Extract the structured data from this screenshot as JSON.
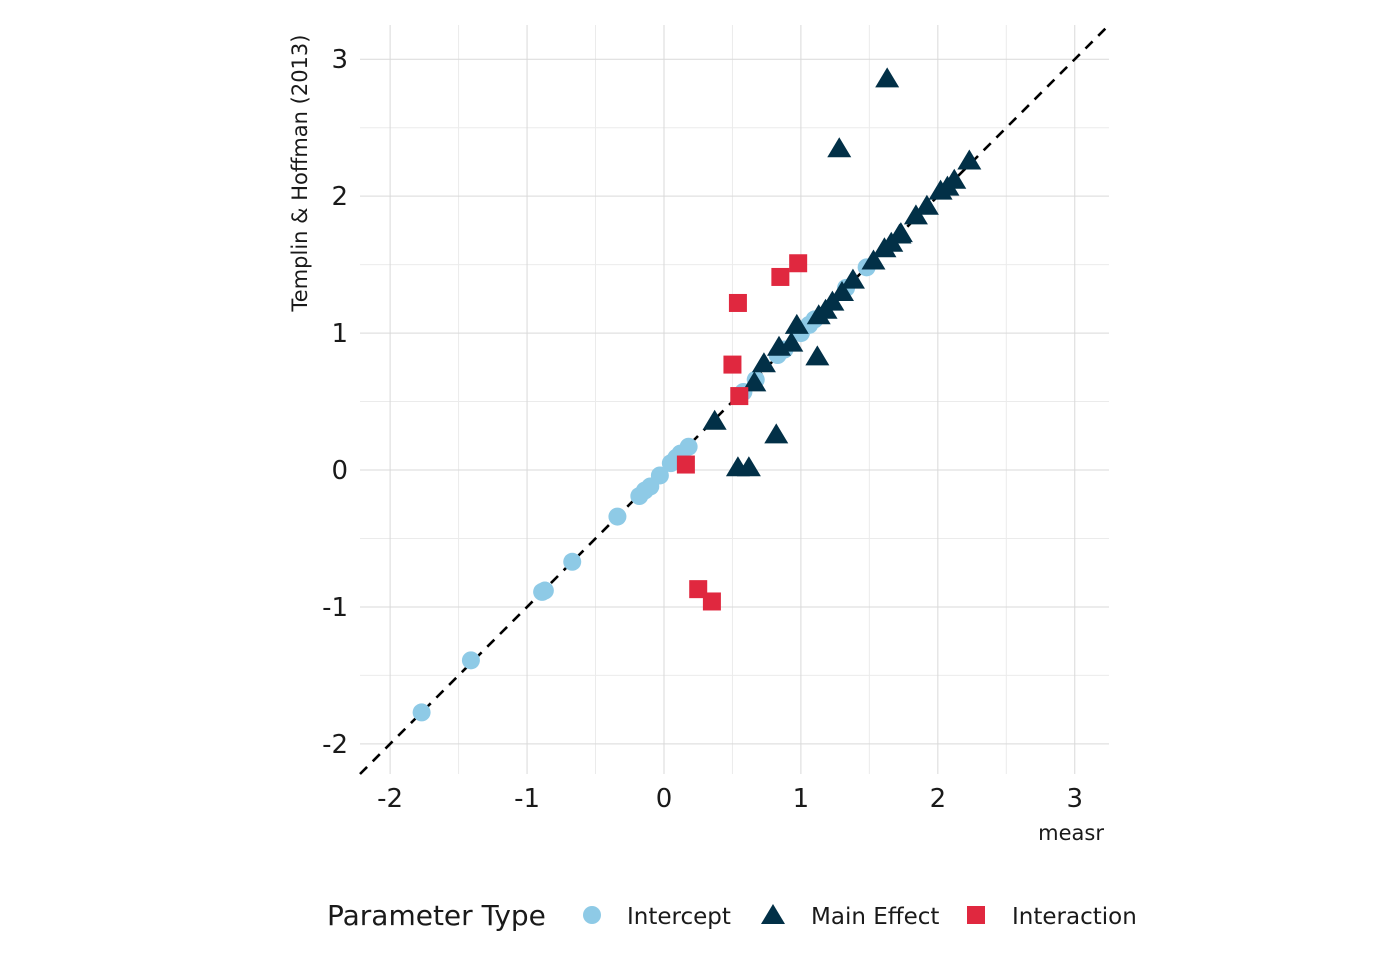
{
  "chart_data": {
    "type": "scatter",
    "title": "",
    "xlabel": "measr",
    "ylabel": "Templin & Hoffman (2013)",
    "xlim": [
      -2.22,
      3.25
    ],
    "ylim": [
      -2.22,
      3.25
    ],
    "x_ticks": [
      -2,
      -1,
      0,
      1,
      2,
      3
    ],
    "y_ticks": [
      -2,
      -1,
      0,
      1,
      2,
      3
    ],
    "x_tick_labels": [
      "-2",
      "-1",
      "0",
      "1",
      "2",
      "3"
    ],
    "y_tick_labels": [
      "-2",
      "-1",
      "0",
      "1",
      "2",
      "3"
    ],
    "grid": true,
    "reference_line": {
      "type": "identity",
      "style": "dashed",
      "color": "#000000"
    },
    "legend": {
      "title": "Parameter Type",
      "position": "bottom"
    },
    "series": [
      {
        "name": "Intercept",
        "shape": "circle",
        "color": "#8ecae6",
        "points": [
          [
            -1.77,
            -1.77
          ],
          [
            -1.41,
            -1.39
          ],
          [
            -0.87,
            -0.88
          ],
          [
            -0.89,
            -0.89
          ],
          [
            -0.67,
            -0.67
          ],
          [
            -0.34,
            -0.34
          ],
          [
            -0.18,
            -0.19
          ],
          [
            -0.14,
            -0.15
          ],
          [
            -0.1,
            -0.12
          ],
          [
            -0.03,
            -0.04
          ],
          [
            0.05,
            0.05
          ],
          [
            0.09,
            0.09
          ],
          [
            0.12,
            0.12
          ],
          [
            0.18,
            0.17
          ],
          [
            0.58,
            0.57
          ],
          [
            0.67,
            0.66
          ],
          [
            0.83,
            0.84
          ],
          [
            0.88,
            0.88
          ],
          [
            1.0,
            1.0
          ],
          [
            1.06,
            1.06
          ],
          [
            1.1,
            1.1
          ],
          [
            1.33,
            1.33
          ],
          [
            1.48,
            1.48
          ]
        ]
      },
      {
        "name": "Main Effect",
        "shape": "triangle",
        "color": "#023047",
        "points": [
          [
            0.37,
            0.36
          ],
          [
            0.54,
            0.02
          ],
          [
            0.62,
            0.02
          ],
          [
            0.66,
            0.64
          ],
          [
            0.73,
            0.78
          ],
          [
            0.82,
            0.26
          ],
          [
            0.84,
            0.9
          ],
          [
            0.93,
            0.93
          ],
          [
            0.97,
            1.06
          ],
          [
            1.12,
            0.83
          ],
          [
            1.13,
            1.13
          ],
          [
            1.18,
            1.17
          ],
          [
            1.23,
            1.23
          ],
          [
            1.3,
            1.3
          ],
          [
            1.38,
            1.39
          ],
          [
            1.28,
            2.35
          ],
          [
            1.53,
            1.53
          ],
          [
            1.61,
            1.62
          ],
          [
            1.63,
            2.86
          ],
          [
            1.66,
            1.66
          ],
          [
            1.72,
            1.72
          ],
          [
            1.73,
            1.73
          ],
          [
            1.84,
            1.86
          ],
          [
            1.92,
            1.93
          ],
          [
            2.02,
            2.04
          ],
          [
            2.07,
            2.07
          ],
          [
            2.12,
            2.12
          ],
          [
            2.23,
            2.26
          ]
        ]
      },
      {
        "name": "Interaction",
        "shape": "square",
        "color": "#e0283f",
        "points": [
          [
            0.16,
            0.04
          ],
          [
            0.25,
            -0.87
          ],
          [
            0.35,
            -0.96
          ],
          [
            0.5,
            0.77
          ],
          [
            0.54,
            1.22
          ],
          [
            0.55,
            0.54
          ],
          [
            0.85,
            1.41
          ],
          [
            0.98,
            1.51
          ]
        ]
      }
    ]
  }
}
